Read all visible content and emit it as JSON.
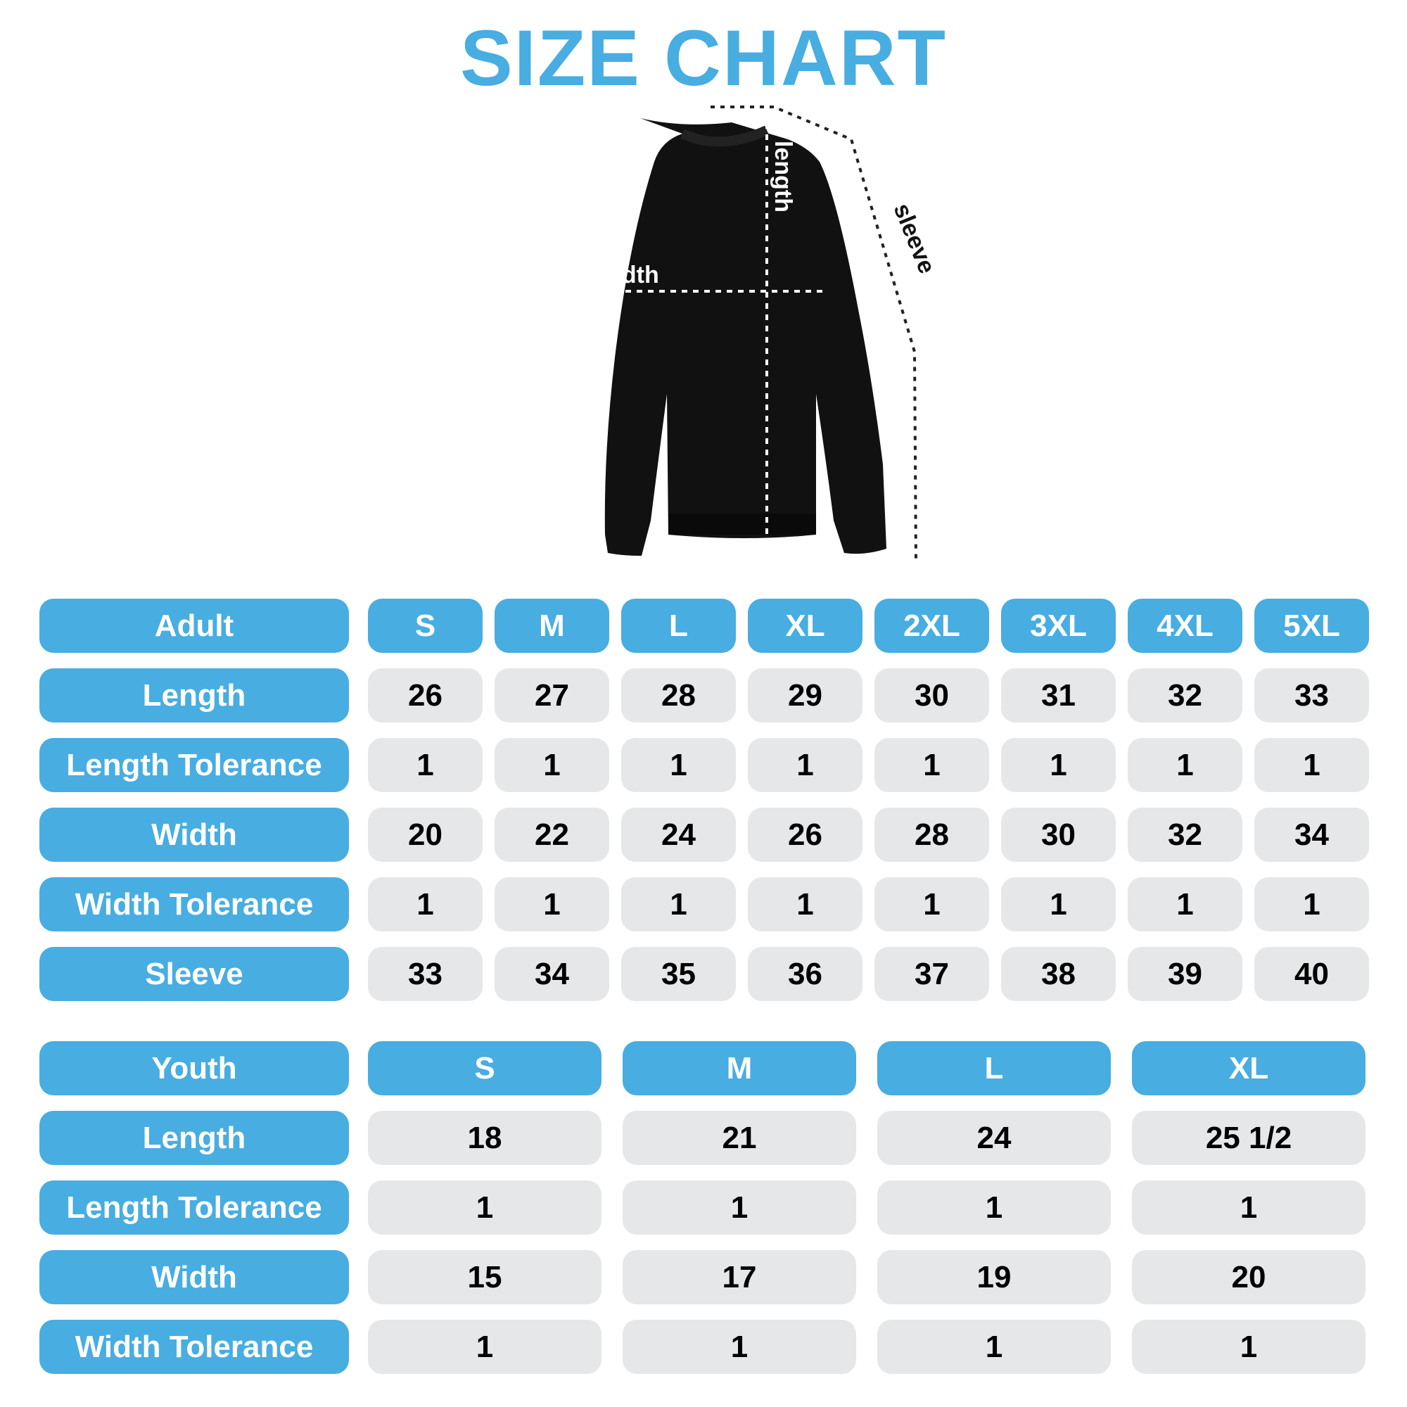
{
  "title": "SIZE CHART",
  "colors": {
    "accent": "#48ADE1",
    "cell": "#E6E7E9",
    "text": "#000000"
  },
  "diagram": {
    "length_label": "length",
    "width_label": "width",
    "sleeve_label": "sleeve"
  },
  "adult": {
    "header": "Adult",
    "sizes": [
      "S",
      "M",
      "L",
      "XL",
      "2XL",
      "3XL",
      "4XL",
      "5XL"
    ],
    "rows": [
      {
        "label": "Length",
        "values": [
          "26",
          "27",
          "28",
          "29",
          "30",
          "31",
          "32",
          "33"
        ]
      },
      {
        "label": "Length Tolerance",
        "values": [
          "1",
          "1",
          "1",
          "1",
          "1",
          "1",
          "1",
          "1"
        ]
      },
      {
        "label": "Width",
        "values": [
          "20",
          "22",
          "24",
          "26",
          "28",
          "30",
          "32",
          "34"
        ]
      },
      {
        "label": "Width Tolerance",
        "values": [
          "1",
          "1",
          "1",
          "1",
          "1",
          "1",
          "1",
          "1"
        ]
      },
      {
        "label": "Sleeve",
        "values": [
          "33",
          "34",
          "35",
          "36",
          "37",
          "38",
          "39",
          "40"
        ]
      }
    ]
  },
  "youth": {
    "header": "Youth",
    "sizes": [
      "S",
      "M",
      "L",
      "XL"
    ],
    "rows": [
      {
        "label": "Length",
        "values": [
          "18",
          "21",
          "24",
          "25 1/2"
        ]
      },
      {
        "label": "Length Tolerance",
        "values": [
          "1",
          "1",
          "1",
          "1"
        ]
      },
      {
        "label": "Width",
        "values": [
          "15",
          "17",
          "19",
          "20"
        ]
      },
      {
        "label": "Width Tolerance",
        "values": [
          "1",
          "1",
          "1",
          "1"
        ]
      }
    ]
  }
}
